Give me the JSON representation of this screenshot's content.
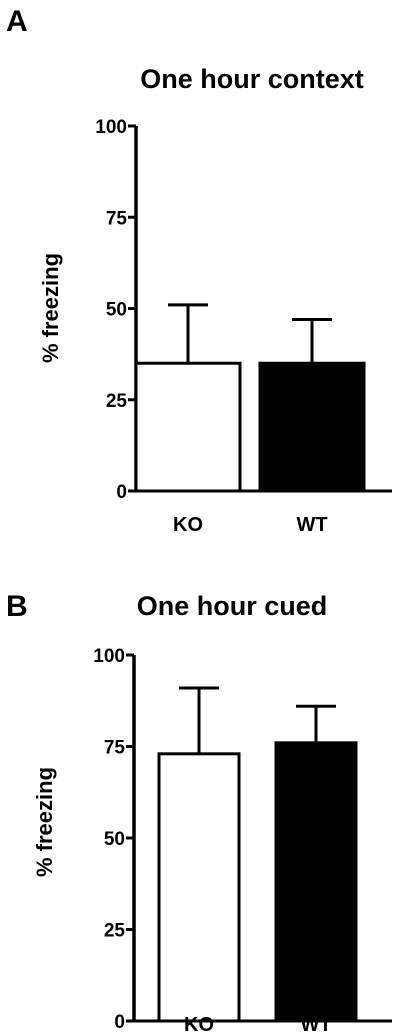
{
  "chart_data": [
    {
      "type": "bar",
      "panel": "A",
      "title": "One hour context",
      "xlabel": "",
      "ylabel": "% freezing",
      "ylim": [
        0,
        100
      ],
      "yticks": [
        "0",
        "25",
        "50",
        "75",
        "100"
      ],
      "categories": [
        "KO",
        "WT"
      ],
      "values": [
        35,
        35
      ],
      "errors": [
        16,
        12
      ],
      "fill_colors": [
        "#ffffff",
        "#000000"
      ],
      "grid": false,
      "legend": "none"
    },
    {
      "type": "bar",
      "panel": "B",
      "title": "One hour cued",
      "xlabel": "",
      "ylabel": "% freezing",
      "ylim": [
        0,
        100
      ],
      "yticks": [
        "0",
        "25",
        "50",
        "75",
        "100"
      ],
      "categories": [
        "KO",
        "WT"
      ],
      "values": [
        73,
        76
      ],
      "errors": [
        18,
        10
      ],
      "fill_colors": [
        "#ffffff",
        "#000000"
      ],
      "grid": false,
      "legend": "none"
    }
  ]
}
